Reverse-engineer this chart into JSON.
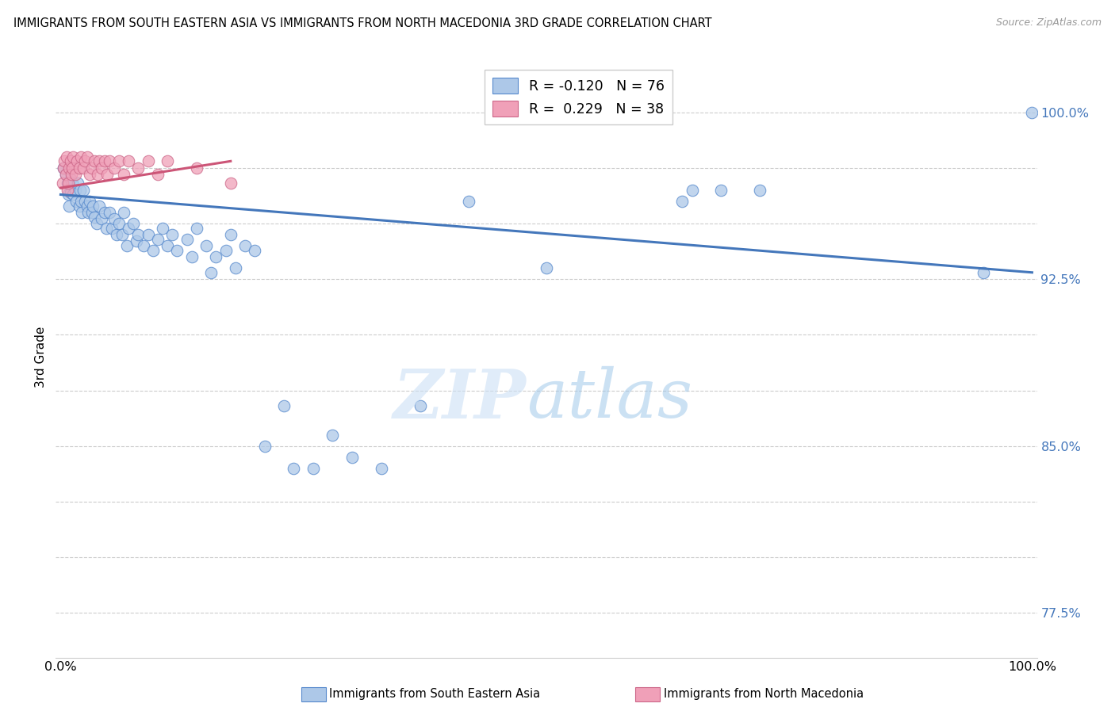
{
  "title": "IMMIGRANTS FROM SOUTH EASTERN ASIA VS IMMIGRANTS FROM NORTH MACEDONIA 3RD GRADE CORRELATION CHART",
  "source": "Source: ZipAtlas.com",
  "ylabel": "3rd Grade",
  "ytick_positions": [
    0.775,
    0.8,
    0.825,
    0.85,
    0.875,
    0.9,
    0.925,
    0.95,
    0.975,
    1.0
  ],
  "ytick_labels": [
    "77.5%",
    "",
    "",
    "85.0%",
    "",
    "",
    "92.5%",
    "",
    "",
    "100.0%"
  ],
  "ymin": 0.755,
  "ymax": 1.025,
  "xmin": -0.005,
  "xmax": 1.005,
  "legend_blue_r": "-0.120",
  "legend_blue_n": "76",
  "legend_pink_r": "0.229",
  "legend_pink_n": "38",
  "blue_color": "#adc8e8",
  "pink_color": "#f0a0b8",
  "blue_edge_color": "#5588cc",
  "pink_edge_color": "#cc6688",
  "blue_line_color": "#4477bb",
  "pink_line_color": "#cc5577",
  "blue_scatter_x": [
    0.003,
    0.005,
    0.007,
    0.008,
    0.009,
    0.01,
    0.01,
    0.012,
    0.013,
    0.015,
    0.016,
    0.018,
    0.019,
    0.02,
    0.021,
    0.022,
    0.023,
    0.025,
    0.027,
    0.028,
    0.03,
    0.032,
    0.033,
    0.035,
    0.037,
    0.04,
    0.042,
    0.045,
    0.047,
    0.05,
    0.053,
    0.055,
    0.058,
    0.06,
    0.063,
    0.065,
    0.068,
    0.07,
    0.075,
    0.078,
    0.08,
    0.085,
    0.09,
    0.095,
    0.1,
    0.105,
    0.11,
    0.115,
    0.12,
    0.13,
    0.135,
    0.14,
    0.15,
    0.155,
    0.16,
    0.17,
    0.175,
    0.18,
    0.19,
    0.2,
    0.21,
    0.23,
    0.24,
    0.26,
    0.28,
    0.3,
    0.33,
    0.37,
    0.42,
    0.5,
    0.64,
    0.65,
    0.68,
    0.72,
    0.95,
    1.0
  ],
  "blue_scatter_y": [
    0.975,
    0.972,
    0.968,
    0.963,
    0.958,
    0.97,
    0.964,
    0.968,
    0.963,
    0.965,
    0.96,
    0.968,
    0.958,
    0.965,
    0.96,
    0.955,
    0.965,
    0.96,
    0.958,
    0.955,
    0.96,
    0.955,
    0.958,
    0.953,
    0.95,
    0.958,
    0.952,
    0.955,
    0.948,
    0.955,
    0.948,
    0.952,
    0.945,
    0.95,
    0.945,
    0.955,
    0.94,
    0.948,
    0.95,
    0.942,
    0.945,
    0.94,
    0.945,
    0.938,
    0.943,
    0.948,
    0.94,
    0.945,
    0.938,
    0.943,
    0.935,
    0.948,
    0.94,
    0.928,
    0.935,
    0.938,
    0.945,
    0.93,
    0.94,
    0.938,
    0.85,
    0.868,
    0.84,
    0.84,
    0.855,
    0.845,
    0.84,
    0.868,
    0.96,
    0.93,
    0.96,
    0.965,
    0.965,
    0.965,
    0.928,
    1.0
  ],
  "pink_scatter_x": [
    0.002,
    0.003,
    0.004,
    0.005,
    0.006,
    0.007,
    0.008,
    0.009,
    0.01,
    0.011,
    0.012,
    0.013,
    0.015,
    0.017,
    0.019,
    0.021,
    0.023,
    0.025,
    0.027,
    0.03,
    0.032,
    0.035,
    0.038,
    0.04,
    0.042,
    0.045,
    0.048,
    0.05,
    0.055,
    0.06,
    0.065,
    0.07,
    0.08,
    0.09,
    0.1,
    0.11,
    0.14,
    0.175
  ],
  "pink_scatter_y": [
    0.968,
    0.975,
    0.978,
    0.972,
    0.98,
    0.965,
    0.968,
    0.975,
    0.978,
    0.972,
    0.975,
    0.98,
    0.972,
    0.978,
    0.975,
    0.98,
    0.975,
    0.978,
    0.98,
    0.972,
    0.975,
    0.978,
    0.972,
    0.978,
    0.975,
    0.978,
    0.972,
    0.978,
    0.975,
    0.978,
    0.972,
    0.978,
    0.975,
    0.978,
    0.972,
    0.978,
    0.975,
    0.968
  ],
  "blue_trend_x": [
    0.0,
    1.0
  ],
  "blue_trend_y": [
    0.963,
    0.928
  ],
  "pink_trend_x": [
    0.0,
    0.175
  ],
  "pink_trend_y": [
    0.966,
    0.978
  ],
  "grid_y_positions": [
    0.775,
    0.8,
    0.825,
    0.85,
    0.875,
    0.9,
    0.925,
    0.95,
    0.975,
    1.0
  ],
  "bottom_label_blue": "Immigrants from South Eastern Asia",
  "bottom_label_pink": "Immigrants from North Macedonia"
}
